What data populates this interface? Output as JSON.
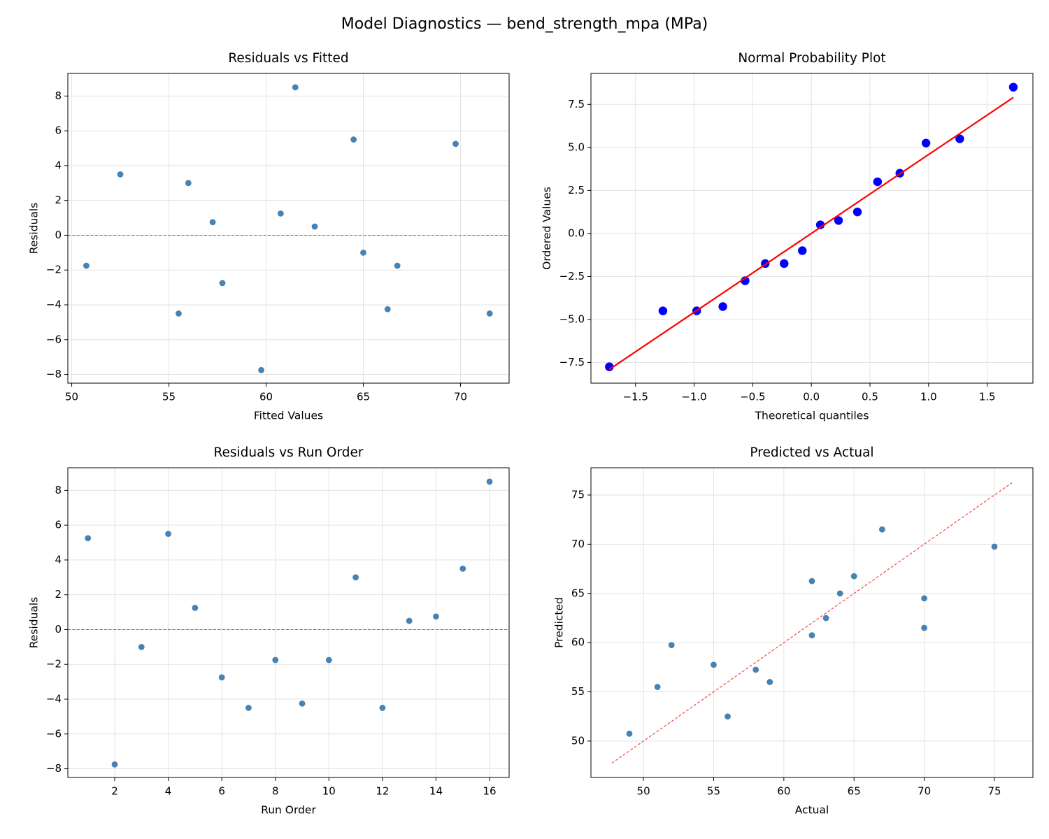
{
  "title": "Model Diagnostics — bend_strength_mpa (MPa)",
  "chart_data": [
    {
      "type": "scatter",
      "title": "Residuals vs Fitted",
      "xlabel": "Fitted Values",
      "ylabel": "Residuals",
      "grid": true,
      "xlim": [
        49.8,
        72.5
      ],
      "ylim": [
        -8.5,
        9.3
      ],
      "xticks": [
        50,
        55,
        60,
        65,
        70
      ],
      "yticks": [
        {
          "value": -8,
          "label": "−8"
        },
        {
          "value": -6,
          "label": "−6"
        },
        {
          "value": -4,
          "label": "−4"
        },
        {
          "value": -2,
          "label": "−2"
        },
        0,
        2,
        4,
        6,
        8
      ],
      "hline": 0,
      "hline_color": "#f03c3c",
      "series": [
        {
          "kind": "points",
          "color": "#4682b4",
          "x": [
            69.75,
            59.75,
            65.0,
            64.5,
            60.75,
            57.75,
            55.5,
            50.75,
            66.25,
            66.75,
            56.0,
            71.5,
            62.5,
            57.25,
            52.5,
            61.5
          ],
          "values": [
            5.25,
            -7.75,
            -1.0,
            5.5,
            1.25,
            -2.75,
            -4.5,
            -1.75,
            -4.25,
            -1.75,
            3.0,
            -4.5,
            0.5,
            0.75,
            3.5,
            8.5
          ]
        }
      ]
    },
    {
      "type": "scatter",
      "title": "Normal Probability Plot",
      "xlabel": "Theoretical quantiles",
      "ylabel": "Ordered Values",
      "grid": true,
      "xlim": [
        -1.88,
        1.89
      ],
      "ylim": [
        -8.7,
        9.3
      ],
      "xticks": [
        {
          "value": -1.5,
          "label": "−1.5"
        },
        {
          "value": -1.0,
          "label": "−1.0"
        },
        {
          "value": -0.5,
          "label": "−0.5"
        },
        {
          "value": 0,
          "label": "0.0"
        },
        0.5,
        {
          "value": 1,
          "label": "1.0"
        },
        1.5
      ],
      "yticks": [
        {
          "value": -7.5,
          "label": "−7.5"
        },
        {
          "value": -5,
          "label": "−5.0"
        },
        {
          "value": -2.5,
          "label": "−2.5"
        },
        {
          "value": 0,
          "label": "0.0"
        },
        2.5,
        {
          "value": 5,
          "label": "5.0"
        },
        7.5
      ],
      "series": [
        {
          "kind": "points",
          "color": "#0000ff",
          "x": [
            -1.723,
            -1.266,
            -0.978,
            -0.755,
            -0.565,
            -0.393,
            -0.232,
            -0.077,
            0.077,
            0.232,
            0.393,
            0.565,
            0.755,
            0.978,
            1.266,
            1.723
          ],
          "values": [
            -7.75,
            -4.5,
            -4.5,
            -4.25,
            -2.75,
            -1.75,
            -1.75,
            -1.0,
            0.5,
            0.75,
            1.25,
            3.0,
            3.5,
            5.25,
            5.5,
            8.5
          ]
        },
        {
          "kind": "line",
          "color": "#ff0000",
          "linestyle": "solid",
          "x": [
            -1.723,
            1.723
          ],
          "values": [
            -7.9,
            7.9
          ]
        }
      ]
    },
    {
      "type": "scatter",
      "title": "Residuals vs Run Order",
      "xlabel": "Run Order",
      "ylabel": "Residuals",
      "grid": true,
      "xlim": [
        0.25,
        16.73
      ],
      "ylim": [
        -8.5,
        9.3
      ],
      "xticks": [
        2,
        4,
        6,
        8,
        10,
        12,
        14,
        16
      ],
      "yticks": [
        {
          "value": -8,
          "label": "−8"
        },
        {
          "value": -6,
          "label": "−6"
        },
        {
          "value": -4,
          "label": "−4"
        },
        {
          "value": -2,
          "label": "−2"
        },
        0,
        2,
        4,
        6,
        8
      ],
      "hline": 0,
      "hline_color": "#f03c3c",
      "series": [
        {
          "kind": "points",
          "color": "#4682b4",
          "x": [
            1,
            2,
            3,
            4,
            5,
            6,
            7,
            8,
            9,
            10,
            11,
            12,
            13,
            14,
            15,
            16
          ],
          "values": [
            5.25,
            -7.75,
            -1.0,
            5.5,
            1.25,
            -2.75,
            -4.5,
            -1.75,
            -4.25,
            -1.75,
            3.0,
            -4.5,
            0.5,
            0.75,
            3.5,
            8.5
          ]
        }
      ]
    },
    {
      "type": "scatter",
      "title": "Predicted vs Actual",
      "xlabel": "Actual",
      "ylabel": "Predicted",
      "grid": true,
      "xlim": [
        46.26,
        77.74
      ],
      "ylim": [
        46.3,
        77.77
      ],
      "xticks": [
        50,
        55,
        60,
        65,
        70,
        75
      ],
      "yticks": [
        50,
        55,
        60,
        65,
        70,
        75
      ],
      "series": [
        {
          "kind": "points",
          "color": "#4682b4",
          "x": [
            75,
            52,
            64,
            70,
            62,
            55,
            51,
            49,
            62,
            65,
            59,
            67,
            63,
            58,
            56,
            70
          ],
          "values": [
            69.75,
            59.75,
            65.0,
            64.5,
            60.75,
            57.75,
            55.5,
            50.75,
            66.25,
            66.75,
            56.0,
            71.5,
            62.5,
            57.25,
            52.5,
            61.5
          ]
        },
        {
          "kind": "line",
          "color": "#f03c3c",
          "linestyle": "dashed",
          "x": [
            47.75,
            76.25
          ],
          "values": [
            47.75,
            76.25
          ]
        }
      ]
    }
  ]
}
